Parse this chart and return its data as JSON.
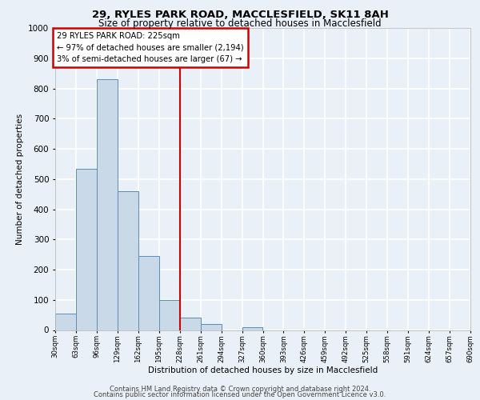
{
  "title1": "29, RYLES PARK ROAD, MACCLESFIELD, SK11 8AH",
  "title2": "Size of property relative to detached houses in Macclesfield",
  "xlabel": "Distribution of detached houses by size in Macclesfield",
  "ylabel": "Number of detached properties",
  "bin_edges": [
    30,
    63,
    96,
    129,
    162,
    195,
    228,
    261,
    294,
    327,
    360,
    393,
    426,
    459,
    492,
    525,
    558,
    591,
    624,
    657,
    690
  ],
  "bar_heights": [
    55,
    535,
    830,
    460,
    245,
    100,
    40,
    20,
    0,
    10,
    0,
    0,
    0,
    0,
    0,
    0,
    0,
    0,
    0,
    0
  ],
  "bar_color": "#c9d9e8",
  "bar_edge_color": "#5b8db8",
  "vline_x": 228,
  "vline_color": "#cc0000",
  "annotation_title": "29 RYLES PARK ROAD: 225sqm",
  "annotation_line1": "← 97% of detached houses are smaller (2,194)",
  "annotation_line2": "3% of semi-detached houses are larger (67) →",
  "annotation_box_color": "#cc0000",
  "annotation_bg": "#ffffff",
  "ylim": [
    0,
    1000
  ],
  "footer1": "Contains HM Land Registry data © Crown copyright and database right 2024.",
  "footer2": "Contains public sector information licensed under the Open Government Licence v3.0.",
  "bg_color": "#eaf0f7",
  "plot_bg_color": "#eaf0f7",
  "grid_color": "#ffffff",
  "tick_labels": [
    "30sqm",
    "63sqm",
    "96sqm",
    "129sqm",
    "162sqm",
    "195sqm",
    "228sqm",
    "261sqm",
    "294sqm",
    "327sqm",
    "360sqm",
    "393sqm",
    "426sqm",
    "459sqm",
    "492sqm",
    "525sqm",
    "558sqm",
    "591sqm",
    "624sqm",
    "657sqm",
    "690sqm"
  ]
}
